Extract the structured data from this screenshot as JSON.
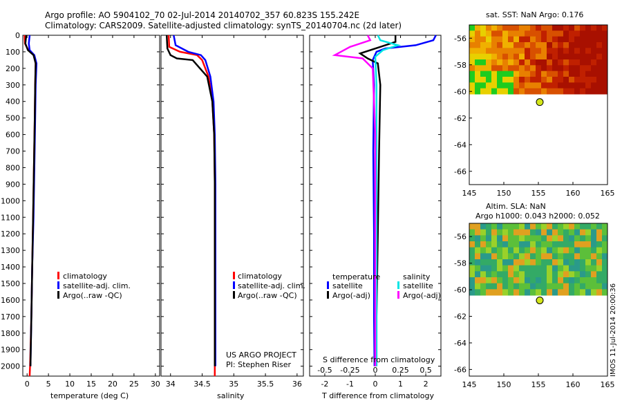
{
  "header": {
    "line1": "Argo profile: AO 5904102_70 02-Jul-2014 20140702_357 60.823S 155.242E",
    "line2": "Climatology: CARS2009. Satellite-adjusted climatology: synTS_20140704.nc (2d later)"
  },
  "credits": {
    "project": "US ARGO PROJECT",
    "pi": "PI: Stephen Riser",
    "stamp": "IMOS 11-Jul-2014 20:00:36"
  },
  "colors": {
    "climatology": "#ff0000",
    "satellite": "#0000ff",
    "argo": "#000000",
    "sal_satellite": "#00e5e5",
    "sal_argo": "#ff00ff",
    "sst_map": "#cc2200",
    "sla_map": "#33aa44",
    "land": "#1fcc1f",
    "marker": "#d4e61a"
  },
  "chart_data": [
    {
      "type": "line",
      "id": "temperature",
      "xlabel": "temperature (deg C)",
      "ylabel": "",
      "xlim": [
        -1,
        31
      ],
      "ylim": [
        2060,
        0
      ],
      "xticks": [
        0,
        5,
        10,
        15,
        20,
        25,
        30
      ],
      "yticks": [
        0,
        100,
        200,
        300,
        400,
        500,
        600,
        700,
        800,
        900,
        1000,
        1100,
        1200,
        1300,
        1400,
        1500,
        1600,
        1700,
        1800,
        1900,
        2000
      ],
      "legend": [
        "climatology",
        "satellite-adj. clim.",
        "Argo(..raw -QC)"
      ],
      "series": [
        {
          "name": "climatology",
          "x": [
            -0.6,
            -0.5,
            0.3,
            1.6,
            2.0,
            1.9,
            1.8,
            1.6,
            1.4,
            1.2,
            1.0,
            0.7,
            0.6
          ],
          "y": [
            0,
            50,
            90,
            120,
            170,
            300,
            500,
            800,
            1100,
            1400,
            1700,
            2000,
            2060
          ]
        },
        {
          "name": "satellite-adj. clim.",
          "x": [
            0.6,
            0.4,
            0.6,
            1.7,
            2.2,
            2.0,
            1.9,
            1.7,
            1.5,
            1.2,
            1.0,
            0.8
          ],
          "y": [
            0,
            50,
            90,
            120,
            170,
            300,
            500,
            800,
            1100,
            1400,
            1700,
            2000
          ]
        },
        {
          "name": "Argo(..raw -QC)",
          "x": [
            -0.2,
            -0.4,
            0.2,
            1.5,
            2.0,
            1.9,
            1.8,
            1.6,
            1.4,
            1.2,
            1.0,
            0.8
          ],
          "y": [
            0,
            50,
            90,
            120,
            170,
            300,
            500,
            800,
            1100,
            1400,
            1700,
            2000
          ]
        }
      ]
    },
    {
      "type": "line",
      "id": "salinity",
      "xlabel": "salinity",
      "ylabel": "",
      "xlim": [
        33.85,
        36.1
      ],
      "ylim": [
        2060,
        0
      ],
      "xticks": [
        34,
        34.5,
        35,
        35.5,
        36
      ],
      "legend": [
        "climatology",
        "satellite-adj. clim.",
        "Argo(..raw -QC)"
      ],
      "series": [
        {
          "name": "climatology",
          "x": [
            33.97,
            33.98,
            34.15,
            34.42,
            34.5,
            34.6,
            34.66,
            34.69,
            34.7,
            34.7,
            34.7,
            34.7,
            34.7
          ],
          "y": [
            0,
            70,
            100,
            120,
            150,
            250,
            400,
            600,
            900,
            1200,
            1500,
            1800,
            2060
          ]
        },
        {
          "name": "satellite-adj. clim.",
          "x": [
            34.05,
            34.08,
            34.28,
            34.48,
            34.55,
            34.63,
            34.68,
            34.7,
            34.71,
            34.71,
            34.71,
            34.71
          ],
          "y": [
            0,
            60,
            100,
            120,
            150,
            250,
            400,
            600,
            900,
            1200,
            1500,
            2000
          ]
        },
        {
          "name": "Argo(..raw -QC)",
          "x": [
            33.94,
            33.95,
            34.0,
            34.1,
            34.35,
            34.58,
            34.66,
            34.69,
            34.7,
            34.7,
            34.7,
            34.7
          ],
          "y": [
            0,
            80,
            120,
            140,
            150,
            250,
            400,
            600,
            900,
            1200,
            1500,
            2000
          ]
        }
      ]
    },
    {
      "type": "line",
      "id": "difference",
      "xlabel": "T difference from climatology",
      "xlabel_top": "S difference from climatology",
      "xlim": [
        -2.6,
        2.6
      ],
      "ylim": [
        2060,
        0
      ],
      "xticks": [
        -2,
        -1,
        0,
        1,
        2
      ],
      "xticks_s": [
        "-0.5",
        "-0.25",
        "0",
        "0.25",
        "0.5"
      ],
      "legend_t_title": "temperature",
      "legend_s_title": "salinity",
      "legend": [
        "satellite",
        "Argo(-adj)",
        "satellite",
        "Argo(-adj)"
      ],
      "series": [
        {
          "name": "satellite",
          "x": [
            2.4,
            2.3,
            1.6,
            0.4,
            0.05,
            -0.1,
            -0.05,
            -0.08,
            -0.05,
            -0.05,
            -0.03
          ],
          "y": [
            0,
            30,
            60,
            80,
            100,
            150,
            300,
            700,
            1200,
            1700,
            2000
          ]
        },
        {
          "name": "Argo(-adj)",
          "x": [
            0.8,
            0.8,
            0.2,
            -0.6,
            -0.3,
            0.1,
            0.2,
            0.15,
            0.1,
            0.05,
            0.05
          ],
          "y": [
            0,
            40,
            70,
            110,
            140,
            170,
            300,
            700,
            1200,
            1700,
            2000
          ]
        },
        {
          "name": "satellite",
          "x": [
            0.1,
            0.2,
            0.9,
            0.3,
            0.0,
            0.05,
            0.05,
            0.05,
            0.05
          ],
          "y": [
            0,
            30,
            60,
            90,
            130,
            300,
            800,
            1500,
            2000
          ]
        },
        {
          "name": "Argo(-adj)",
          "x": [
            -0.3,
            -0.2,
            -1.0,
            -1.6,
            -0.5,
            -0.1,
            0.0,
            0.0,
            0.0
          ],
          "y": [
            0,
            30,
            70,
            120,
            140,
            200,
            600,
            1300,
            2000
          ]
        }
      ]
    },
    {
      "type": "heatmap",
      "id": "sst-map",
      "title": "sat. SST: NaN Argo: 0.176",
      "xlim": [
        145,
        165
      ],
      "ylim": [
        -67,
        -55
      ],
      "xticks": [
        145,
        150,
        155,
        160,
        165
      ],
      "yticks": [
        -56,
        -58,
        -60,
        -62,
        -64,
        -66
      ],
      "marker": {
        "lon": 155.2,
        "lat": -60.8
      }
    },
    {
      "type": "heatmap",
      "id": "sla-map",
      "title_line1": "Altim. SLA: NaN",
      "title_line2": "Argo h1000: 0.043 h2000: 0.052",
      "xlim": [
        145,
        165
      ],
      "ylim": [
        -66.5,
        -55
      ],
      "xticks": [
        145,
        150,
        155,
        160,
        165
      ],
      "yticks": [
        -56,
        -58,
        -60,
        -62,
        -64,
        -66
      ],
      "marker": {
        "lon": 155.2,
        "lat": -60.8
      }
    }
  ]
}
